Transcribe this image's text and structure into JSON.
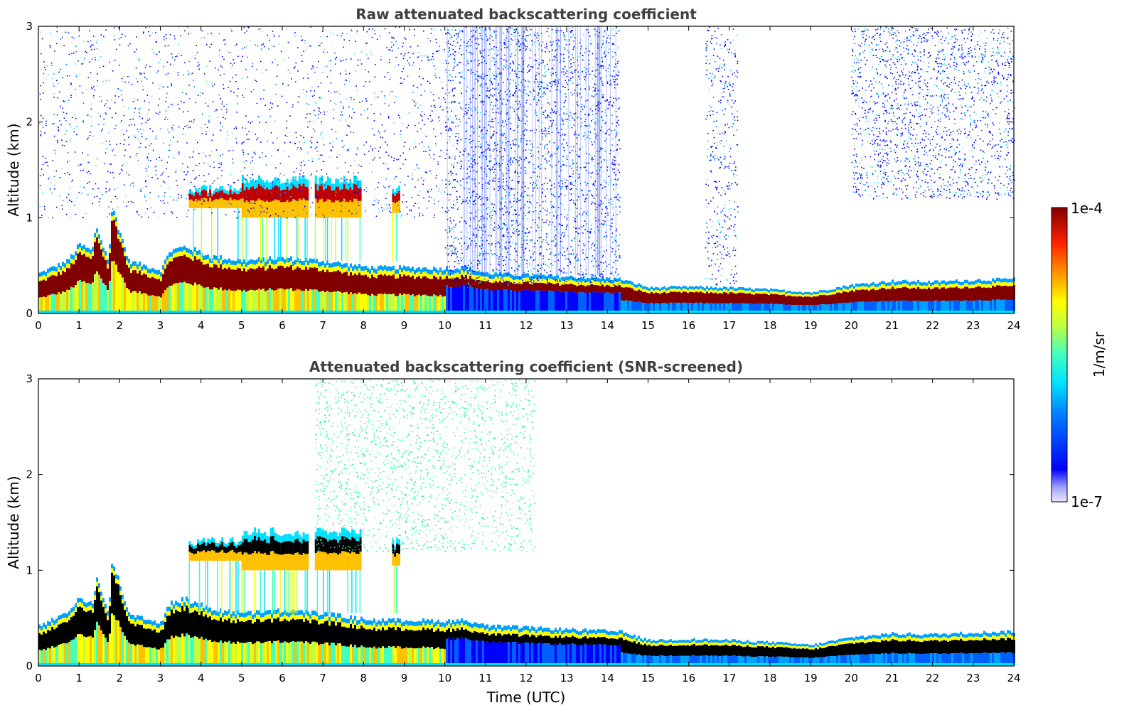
{
  "chart_data": [
    {
      "type": "heatmap",
      "title": "Raw attenuated backscattering coefficient",
      "xlabel": "",
      "ylabel": "Altitude (km)",
      "xlim": [
        0,
        24
      ],
      "ylim": [
        0,
        3
      ],
      "xticks": [
        "0",
        "1",
        "2",
        "3",
        "4",
        "5",
        "6",
        "7",
        "8",
        "9",
        "10",
        "11",
        "12",
        "13",
        "14",
        "15",
        "16",
        "17",
        "18",
        "19",
        "20",
        "21",
        "22",
        "23",
        "24"
      ],
      "yticks": [
        "0",
        "1",
        "2",
        "3"
      ],
      "screened": false,
      "boundary_layer": [
        {
          "x": 0,
          "top": 0.42
        },
        {
          "x": 0.7,
          "top": 0.55
        },
        {
          "x": 1.0,
          "top": 0.72
        },
        {
          "x": 1.3,
          "top": 0.65
        },
        {
          "x": 1.4,
          "top": 0.92
        },
        {
          "x": 1.7,
          "top": 0.55
        },
        {
          "x": 1.8,
          "top": 1.12
        },
        {
          "x": 2.2,
          "top": 0.55
        },
        {
          "x": 2.6,
          "top": 0.5
        },
        {
          "x": 3.0,
          "top": 0.45
        },
        {
          "x": 3.2,
          "top": 0.65
        },
        {
          "x": 3.6,
          "top": 0.7
        },
        {
          "x": 4.2,
          "top": 0.6
        },
        {
          "x": 5.0,
          "top": 0.55
        },
        {
          "x": 6.0,
          "top": 0.58
        },
        {
          "x": 7.0,
          "top": 0.55
        },
        {
          "x": 7.8,
          "top": 0.5
        },
        {
          "x": 8.2,
          "top": 0.48
        },
        {
          "x": 9.0,
          "top": 0.48
        },
        {
          "x": 10.0,
          "top": 0.47
        },
        {
          "x": 10.5,
          "top": 0.48
        },
        {
          "x": 11.0,
          "top": 0.42
        },
        {
          "x": 14.3,
          "top": 0.36
        },
        {
          "x": 15.0,
          "top": 0.27
        },
        {
          "x": 16.0,
          "top": 0.28
        },
        {
          "x": 17.0,
          "top": 0.27
        },
        {
          "x": 18.0,
          "top": 0.25
        },
        {
          "x": 19.0,
          "top": 0.22
        },
        {
          "x": 20.0,
          "top": 0.3
        },
        {
          "x": 21.0,
          "top": 0.34
        },
        {
          "x": 22.0,
          "top": 0.33
        },
        {
          "x": 23.0,
          "top": 0.35
        },
        {
          "x": 24.0,
          "top": 0.36
        }
      ],
      "elevated_layers": [
        {
          "x0": 3.7,
          "x1": 5.0,
          "y0": 1.1,
          "y1": 1.35
        },
        {
          "x0": 5.0,
          "x1": 6.6,
          "y0": 1.0,
          "y1": 1.45
        },
        {
          "x0": 6.8,
          "x1": 7.9,
          "y0": 1.0,
          "y1": 1.45
        },
        {
          "x0": 8.7,
          "x1": 8.9,
          "y0": 1.05,
          "y1": 1.35
        }
      ],
      "noise_regions": [
        {
          "x0": 0,
          "x1": 10.0,
          "y0": 1.0,
          "y1": 3.0,
          "density": "medium"
        },
        {
          "x0": 10.0,
          "x1": 14.3,
          "y0": 0.3,
          "y1": 3.0,
          "density": "high"
        },
        {
          "x0": 16.4,
          "x1": 17.2,
          "y0": 0.3,
          "y1": 3.0,
          "density": "low"
        },
        {
          "x0": 20.0,
          "x1": 24.0,
          "y0": 1.2,
          "y1": 3.0,
          "density": "medium"
        }
      ]
    },
    {
      "type": "heatmap",
      "title": "Attenuated backscattering coefficient (SNR-screened)",
      "xlabel": "Time (UTC)",
      "ylabel": "Altitude (km)",
      "xlim": [
        0,
        24
      ],
      "ylim": [
        0,
        3
      ],
      "xticks": [
        "0",
        "1",
        "2",
        "3",
        "4",
        "5",
        "6",
        "7",
        "8",
        "9",
        "10",
        "11",
        "12",
        "13",
        "14",
        "15",
        "16",
        "17",
        "18",
        "19",
        "20",
        "21",
        "22",
        "23",
        "24"
      ],
      "yticks": [
        "0",
        "1",
        "2",
        "3"
      ],
      "screened": true,
      "noise_regions": [
        {
          "x0": 6.8,
          "x1": 12.2,
          "y0": 1.2,
          "y1": 3.0,
          "density": "medium"
        }
      ]
    }
  ],
  "colorbar": {
    "label": "1/m/sr",
    "min_label": "1e-7",
    "max_label": "1e-4",
    "scale": "log",
    "min": 1e-07,
    "max": 0.0001
  }
}
